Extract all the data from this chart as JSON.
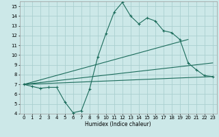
{
  "bg_color": "#cce8e8",
  "grid_color": "#aacfcf",
  "line_color": "#1a6b5a",
  "marker": "+",
  "xlabel": "Humidex (Indice chaleur)",
  "xlim": [
    -0.5,
    23.5
  ],
  "ylim": [
    4,
    15.5
  ],
  "yticks": [
    4,
    5,
    6,
    7,
    8,
    9,
    10,
    11,
    12,
    13,
    14,
    15
  ],
  "xticks": [
    0,
    1,
    2,
    3,
    4,
    5,
    6,
    7,
    8,
    9,
    10,
    11,
    12,
    13,
    14,
    15,
    16,
    17,
    18,
    19,
    20,
    21,
    22,
    23
  ],
  "line1_x": [
    0,
    1,
    2,
    3,
    4,
    5,
    6,
    7,
    8,
    9,
    10,
    11,
    12,
    13,
    14,
    15,
    16,
    17,
    18,
    19,
    20,
    21,
    22,
    23
  ],
  "line1_y": [
    7.0,
    6.8,
    6.6,
    6.7,
    6.7,
    5.2,
    4.1,
    4.3,
    6.5,
    9.8,
    12.2,
    14.4,
    15.4,
    14.0,
    13.2,
    13.8,
    13.5,
    12.5,
    12.3,
    11.6,
    9.2,
    8.5,
    7.9,
    7.8
  ],
  "line2_x": [
    0,
    23
  ],
  "line2_y": [
    7.0,
    7.8
  ],
  "line3_x": [
    0,
    23
  ],
  "line3_y": [
    7.0,
    9.2
  ],
  "line4_x": [
    0,
    20
  ],
  "line4_y": [
    7.0,
    11.6
  ],
  "lw": 0.8,
  "ms": 3.5
}
